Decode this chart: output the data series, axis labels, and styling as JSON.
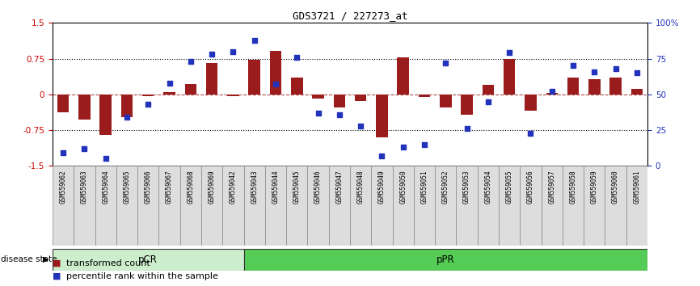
{
  "title": "GDS3721 / 227273_at",
  "samples": [
    "GSM559062",
    "GSM559063",
    "GSM559064",
    "GSM559065",
    "GSM559066",
    "GSM559067",
    "GSM559068",
    "GSM559069",
    "GSM559042",
    "GSM559043",
    "GSM559044",
    "GSM559045",
    "GSM559046",
    "GSM559047",
    "GSM559048",
    "GSM559049",
    "GSM559050",
    "GSM559051",
    "GSM559052",
    "GSM559053",
    "GSM559054",
    "GSM559055",
    "GSM559056",
    "GSM559057",
    "GSM559058",
    "GSM559059",
    "GSM559060",
    "GSM559061"
  ],
  "bar_values": [
    -0.38,
    -0.52,
    -0.85,
    -0.48,
    -0.03,
    0.04,
    0.22,
    0.65,
    -0.03,
    0.72,
    0.92,
    0.35,
    -0.08,
    -0.27,
    -0.14,
    -0.9,
    0.78,
    -0.05,
    -0.27,
    -0.42,
    0.2,
    0.75,
    -0.35,
    0.03,
    0.35,
    0.32,
    0.35,
    0.12
  ],
  "percentile_values": [
    9,
    12,
    5,
    34,
    43,
    58,
    73,
    78,
    80,
    88,
    57,
    76,
    37,
    36,
    28,
    7,
    13,
    15,
    72,
    26,
    45,
    79,
    23,
    52,
    70,
    66,
    68,
    65
  ],
  "pcr_count": 9,
  "ppr_count": 19,
  "bar_color": "#9b1c1c",
  "dot_color": "#2233bb",
  "ylim_left": [
    -1.5,
    1.5
  ],
  "ylim_right": [
    0,
    100
  ],
  "pcr_color": "#cceecc",
  "ppr_color": "#55cc55",
  "legend_bar_label": "transformed count",
  "legend_dot_label": "percentile rank within the sample",
  "disease_state_label": "disease state",
  "pcr_label": "pCR",
  "ppr_label": "pPR"
}
